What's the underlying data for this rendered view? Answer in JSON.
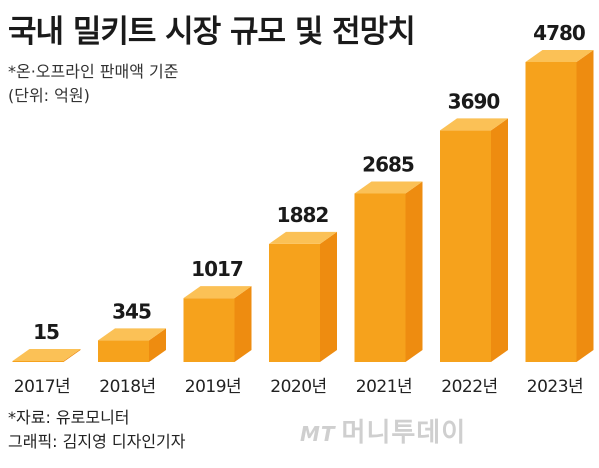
{
  "title": "국내 밀키트 시장 규모 및 전망치",
  "notes": {
    "basis": "*온·오프라인 판매액 기준",
    "unit": "(단위: 억원)"
  },
  "source": {
    "data": "*자료: 유로모니터",
    "graphic": "그래픽: 김지영 디자인기자"
  },
  "watermark": {
    "logo": "MT",
    "text": "머니투데이"
  },
  "colors": {
    "bar_front": "#f6a21c",
    "bar_side": "#ee8c10",
    "bar_top": "#fbc156",
    "value_text": "#1a1a1a",
    "label_text": "#222222"
  },
  "chart_data": {
    "type": "bar",
    "categories": [
      "2017년",
      "2018년",
      "2019년",
      "2020년",
      "2021년",
      "2022년",
      "2023년"
    ],
    "values": [
      15,
      345,
      1017,
      1882,
      2685,
      3690,
      4780
    ],
    "value_labels": [
      "15",
      "345",
      "1017",
      "1882",
      "2685",
      "3690",
      "4780"
    ],
    "title": "국내 밀키트 시장 규모 및 전망치",
    "xlabel": "",
    "ylabel": "",
    "unit": "억원",
    "ylim": [
      0,
      4780
    ],
    "grid": false,
    "legend": "none"
  }
}
